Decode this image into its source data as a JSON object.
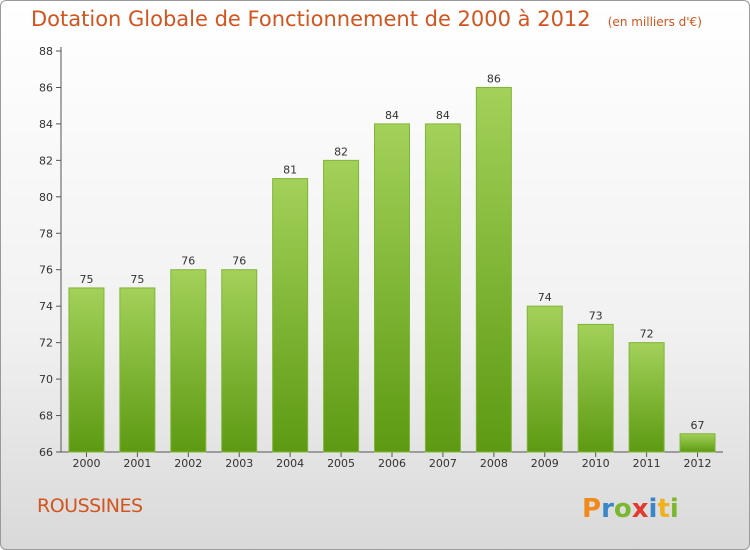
{
  "chart_data": {
    "type": "bar",
    "title": "Dotation Globale de Fonctionnement de 2000 à 2012",
    "subtitle": "(en milliers d'€)",
    "categories": [
      "2000",
      "2001",
      "2002",
      "2003",
      "2004",
      "2005",
      "2006",
      "2007",
      "2008",
      "2009",
      "2010",
      "2011",
      "2012"
    ],
    "values": [
      75,
      75,
      76,
      76,
      81,
      82,
      84,
      84,
      86,
      74,
      73,
      72,
      67
    ],
    "ylim": [
      66,
      88
    ],
    "yticks": [
      66,
      68,
      70,
      72,
      74,
      76,
      78,
      80,
      82,
      84,
      86,
      88
    ],
    "grid": false,
    "legend": "none",
    "colors": {
      "bar_top": "#a3d15a",
      "bar_bottom": "#5d9a12",
      "bar_edge": "#7fb536"
    }
  },
  "footer": {
    "commune": "ROUSSINES",
    "logo_text": "Proxiti"
  },
  "colors": {
    "title": "#d2541e",
    "axis": "#333333"
  }
}
